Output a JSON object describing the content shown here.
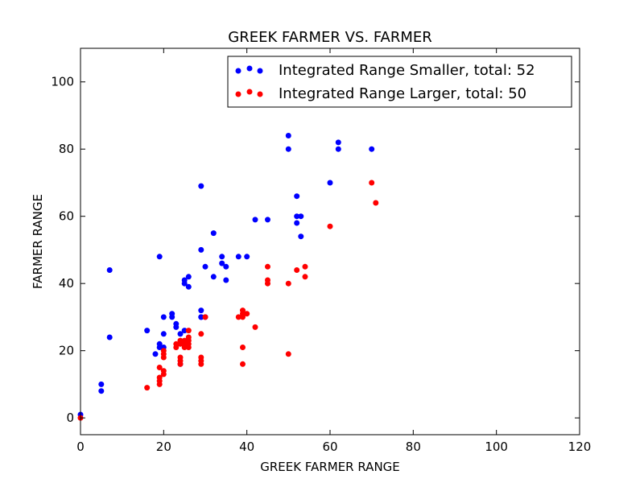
{
  "chart_data": {
    "type": "scatter",
    "title": "GREEK FARMER VS. FARMER",
    "xlabel": "GREEK FARMER RANGE",
    "ylabel": "FARMER RANGE",
    "xlim": [
      0,
      120
    ],
    "ylim": [
      -5,
      110
    ],
    "xticks": [
      0,
      20,
      40,
      60,
      80,
      100,
      120
    ],
    "yticks": [
      0,
      20,
      40,
      60,
      80,
      100
    ],
    "grid": false,
    "legend_position": "top-right",
    "series": [
      {
        "name": "Integrated Range Smaller, total: 52",
        "color": "#0000ff",
        "points": [
          [
            0,
            1
          ],
          [
            5,
            10
          ],
          [
            5,
            8
          ],
          [
            7,
            44
          ],
          [
            7,
            24
          ],
          [
            16,
            26
          ],
          [
            18,
            19
          ],
          [
            19,
            48
          ],
          [
            19,
            22
          ],
          [
            19,
            21
          ],
          [
            20,
            30
          ],
          [
            20,
            25
          ],
          [
            20,
            21
          ],
          [
            22,
            31
          ],
          [
            22,
            30
          ],
          [
            23,
            28
          ],
          [
            23,
            27
          ],
          [
            24,
            25
          ],
          [
            25,
            26
          ],
          [
            25,
            41
          ],
          [
            25,
            40
          ],
          [
            26,
            42
          ],
          [
            26,
            39
          ],
          [
            29,
            69
          ],
          [
            29,
            50
          ],
          [
            29,
            32
          ],
          [
            29,
            30
          ],
          [
            30,
            45
          ],
          [
            32,
            55
          ],
          [
            32,
            42
          ],
          [
            34,
            48
          ],
          [
            34,
            46
          ],
          [
            35,
            45
          ],
          [
            35,
            41
          ],
          [
            38,
            48
          ],
          [
            40,
            48
          ],
          [
            42,
            59
          ],
          [
            45,
            59
          ],
          [
            50,
            84
          ],
          [
            50,
            80
          ],
          [
            52,
            66
          ],
          [
            52,
            60
          ],
          [
            52,
            58
          ],
          [
            53,
            60
          ],
          [
            53,
            54
          ],
          [
            60,
            70
          ],
          [
            62,
            82
          ],
          [
            62,
            80
          ],
          [
            70,
            80
          ],
          [
            24,
            16
          ],
          [
            29,
            30
          ],
          [
            30,
            30
          ]
        ]
      },
      {
        "name": "Integrated Range Larger, total: 50",
        "color": "#ff0000",
        "points": [
          [
            0,
            0
          ],
          [
            16,
            9
          ],
          [
            19,
            15
          ],
          [
            19,
            12
          ],
          [
            19,
            10
          ],
          [
            20,
            20
          ],
          [
            20,
            19
          ],
          [
            20,
            14
          ],
          [
            23,
            21
          ],
          [
            24,
            22
          ],
          [
            24,
            18
          ],
          [
            24,
            16
          ],
          [
            25,
            23
          ],
          [
            26,
            26
          ],
          [
            26,
            23
          ],
          [
            26,
            21
          ],
          [
            29,
            25
          ],
          [
            29,
            18
          ],
          [
            29,
            16
          ],
          [
            30,
            30
          ],
          [
            38,
            30
          ],
          [
            39,
            32
          ],
          [
            39,
            30
          ],
          [
            39,
            21
          ],
          [
            39,
            16
          ],
          [
            40,
            31
          ],
          [
            42,
            27
          ],
          [
            45,
            45
          ],
          [
            45,
            41
          ],
          [
            50,
            40
          ],
          [
            50,
            19
          ],
          [
            52,
            44
          ],
          [
            54,
            45
          ],
          [
            54,
            42
          ],
          [
            60,
            57
          ],
          [
            70,
            70
          ],
          [
            71,
            64
          ],
          [
            25,
            22
          ],
          [
            26,
            22
          ],
          [
            20,
            13
          ],
          [
            19,
            11
          ],
          [
            23,
            22
          ],
          [
            24,
            23
          ],
          [
            39,
            31
          ],
          [
            45,
            40
          ],
          [
            29,
            17
          ],
          [
            26,
            24
          ],
          [
            20,
            18
          ],
          [
            24,
            17
          ],
          [
            25,
            21
          ]
        ]
      }
    ]
  }
}
